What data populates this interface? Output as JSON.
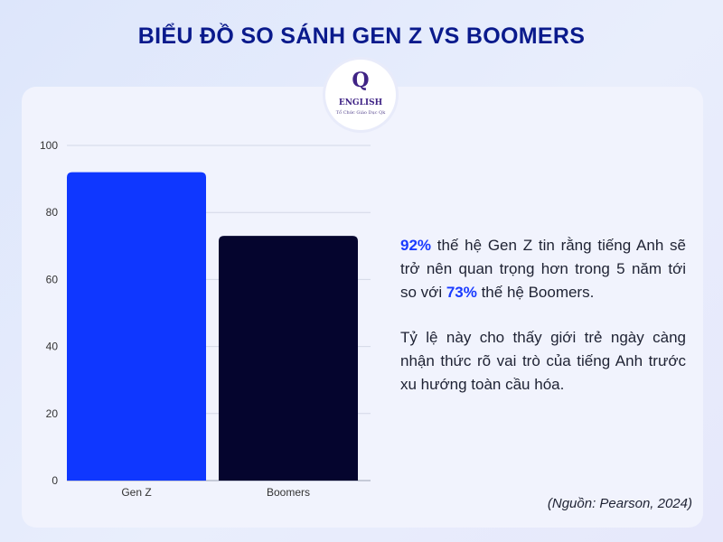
{
  "title": "BIỂU ĐỒ SO SÁNH GEN Z VS BOOMERS",
  "logo": {
    "mark": "Q",
    "word": "ENGLISH",
    "subtitle": "Tổ Chức Giáo Dục Qk"
  },
  "chart_data": {
    "type": "bar",
    "categories": [
      "Gen Z",
      "Boomers"
    ],
    "values": [
      92,
      73
    ],
    "colors": [
      "#0f37ff",
      "#05052e"
    ],
    "ylim": [
      0,
      100
    ],
    "yticks": [
      "0",
      "20",
      "40",
      "60",
      "80",
      "100"
    ],
    "grid": true,
    "title": "",
    "xlabel": "",
    "ylabel": ""
  },
  "description": {
    "p1": {
      "stat1": "92%",
      "text1": " thế hệ Gen Z tin rằng tiếng Anh sẽ trở nên quan trọng hơn trong 5 năm tới so với ",
      "stat2": "73%",
      "text2": " thế hệ Boomers."
    },
    "p2": "Tỷ lệ này cho thấy giới trẻ ngày càng nhận thức rõ vai trò của tiếng Anh trước xu hướng toàn cầu hóa."
  },
  "source": "(Nguồn: Pearson, 2024)"
}
